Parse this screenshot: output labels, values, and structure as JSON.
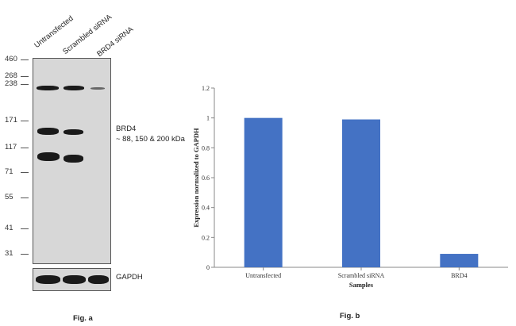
{
  "fig_a": {
    "lanes": [
      "Untransfected",
      "Scrambled siRNA",
      "BRD4 siRNA"
    ],
    "markers": [
      "460",
      "268",
      "238",
      "171",
      "117",
      "71",
      "55",
      "41",
      "31"
    ],
    "target_label": "BRD4",
    "target_sizes": "~ 88, 150 & 200 kDa",
    "loading_label": "GAPDH",
    "caption": "Fig. a"
  },
  "fig_b": {
    "caption": "Fig. b"
  },
  "chart_data": {
    "type": "bar",
    "categories": [
      "Untransfected",
      "Scrambled siRNA",
      "BRD4"
    ],
    "values": [
      1.0,
      0.99,
      0.09
    ],
    "xlabel": "Samples",
    "ylabel": "Expression normalized to GAPDH",
    "ylim": [
      0,
      1.2
    ],
    "yticks": [
      "0",
      "0.2",
      "0.4",
      "0.6",
      "0.8",
      "1",
      "1.2"
    ],
    "grid": false,
    "bar_color": "#4472c4"
  }
}
